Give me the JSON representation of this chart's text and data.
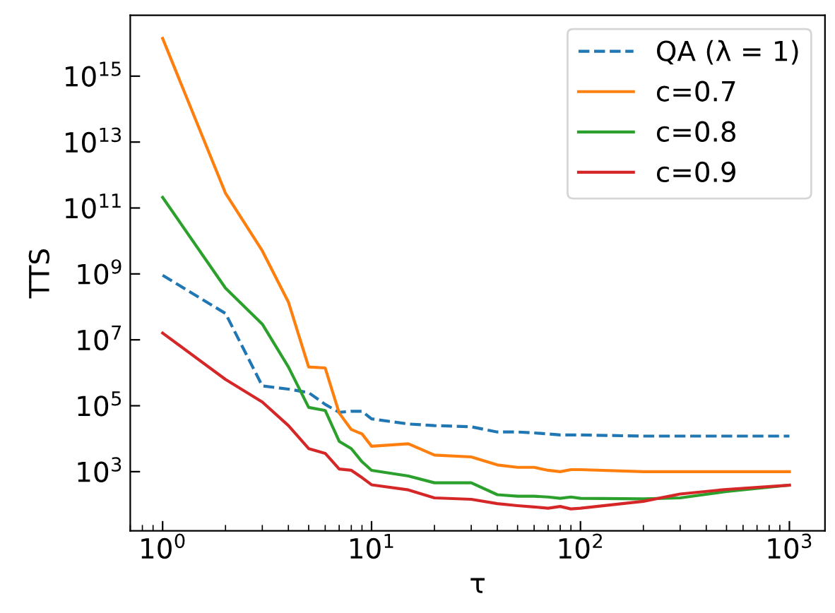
{
  "chart_data": {
    "type": "line",
    "xlabel": "τ",
    "ylabel": "TTS",
    "log": "xy",
    "grid": false,
    "legend": "top right",
    "line_style": "solid",
    "marker": "none",
    "x": [
      1,
      2,
      3,
      4,
      5,
      6,
      7,
      8,
      9,
      10,
      15,
      20,
      30,
      40,
      50,
      60,
      70,
      80,
      90,
      100,
      200,
      300,
      500,
      1000
    ],
    "xlim": [
      0.7,
      1480
    ],
    "ylim": [
      16,
      7e+16
    ],
    "xticks": [
      {
        "value": 1,
        "label": "10$^{0}$"
      },
      {
        "value": 10,
        "label": "10$^{1}$"
      },
      {
        "value": 100,
        "label": "10$^{2}$"
      },
      {
        "value": 1000,
        "label": "10$^{3}$"
      }
    ],
    "yticks": [
      {
        "value": 1000,
        "label": "10$^{3}$"
      },
      {
        "value": 100000,
        "label": "10$^{5}$"
      },
      {
        "value": 10000000.0,
        "label": "10$^{7}$"
      },
      {
        "value": 1000000000.0,
        "label": "10$^{9}$"
      },
      {
        "value": 100000000000.0,
        "label": "10$^{11}$"
      },
      {
        "value": 10000000000000.0,
        "label": "10$^{13}$"
      },
      {
        "value": 1000000000000000.0,
        "label": "10$^{15}$"
      }
    ],
    "series": [
      {
        "name": "QA (λ = 1)",
        "color": "#1f77b4",
        "line_style": "dashed",
        "values": [
          910000000.0,
          63000000.0,
          400000.0,
          320000.0,
          250000.0,
          110000.0,
          63000.0,
          68000.0,
          68000.0,
          40000.0,
          28000.0,
          25000.0,
          23000.0,
          16000.0,
          16000.0,
          15000.0,
          14000.0,
          13000.0,
          13000.0,
          13000.0,
          12000.0,
          12000.0,
          12000.0,
          12000.0
        ]
      },
      {
        "name": "c=0.7",
        "color": "#ff7f0e",
        "values": [
          1.4e+16,
          280000000000.0,
          5000000000.0,
          140000000.0,
          1500000.0,
          1400000.0,
          60000.0,
          19000.0,
          14000.0,
          5900.0,
          7000.0,
          3200.0,
          2800.0,
          1600.0,
          1350.0,
          1350.0,
          1100.0,
          1000.0,
          1150.0,
          1150.0,
          1000.0,
          1000.0,
          1000.0,
          1000.0
        ]
      },
      {
        "name": "c=0.8",
        "color": "#2ca02c",
        "values": [
          210000000000.0,
          370000000.0,
          30000000.0,
          1500000.0,
          89000.0,
          72000.0,
          8300.0,
          5000.0,
          2000.0,
          1100.0,
          740,
          460,
          460,
          200,
          180,
          180,
          170,
          155,
          170,
          155,
          150,
          160,
          250,
          390
        ]
      },
      {
        "name": "c=0.9",
        "color": "#d62728",
        "values": [
          16000000.0,
          630000.0,
          130000.0,
          25000.0,
          5000.0,
          3600.0,
          1200.0,
          1100.0,
          660,
          400,
          280,
          160,
          145,
          107,
          93,
          85,
          78,
          88,
          74,
          78,
          126,
          210,
          290,
          390
        ]
      }
    ]
  }
}
